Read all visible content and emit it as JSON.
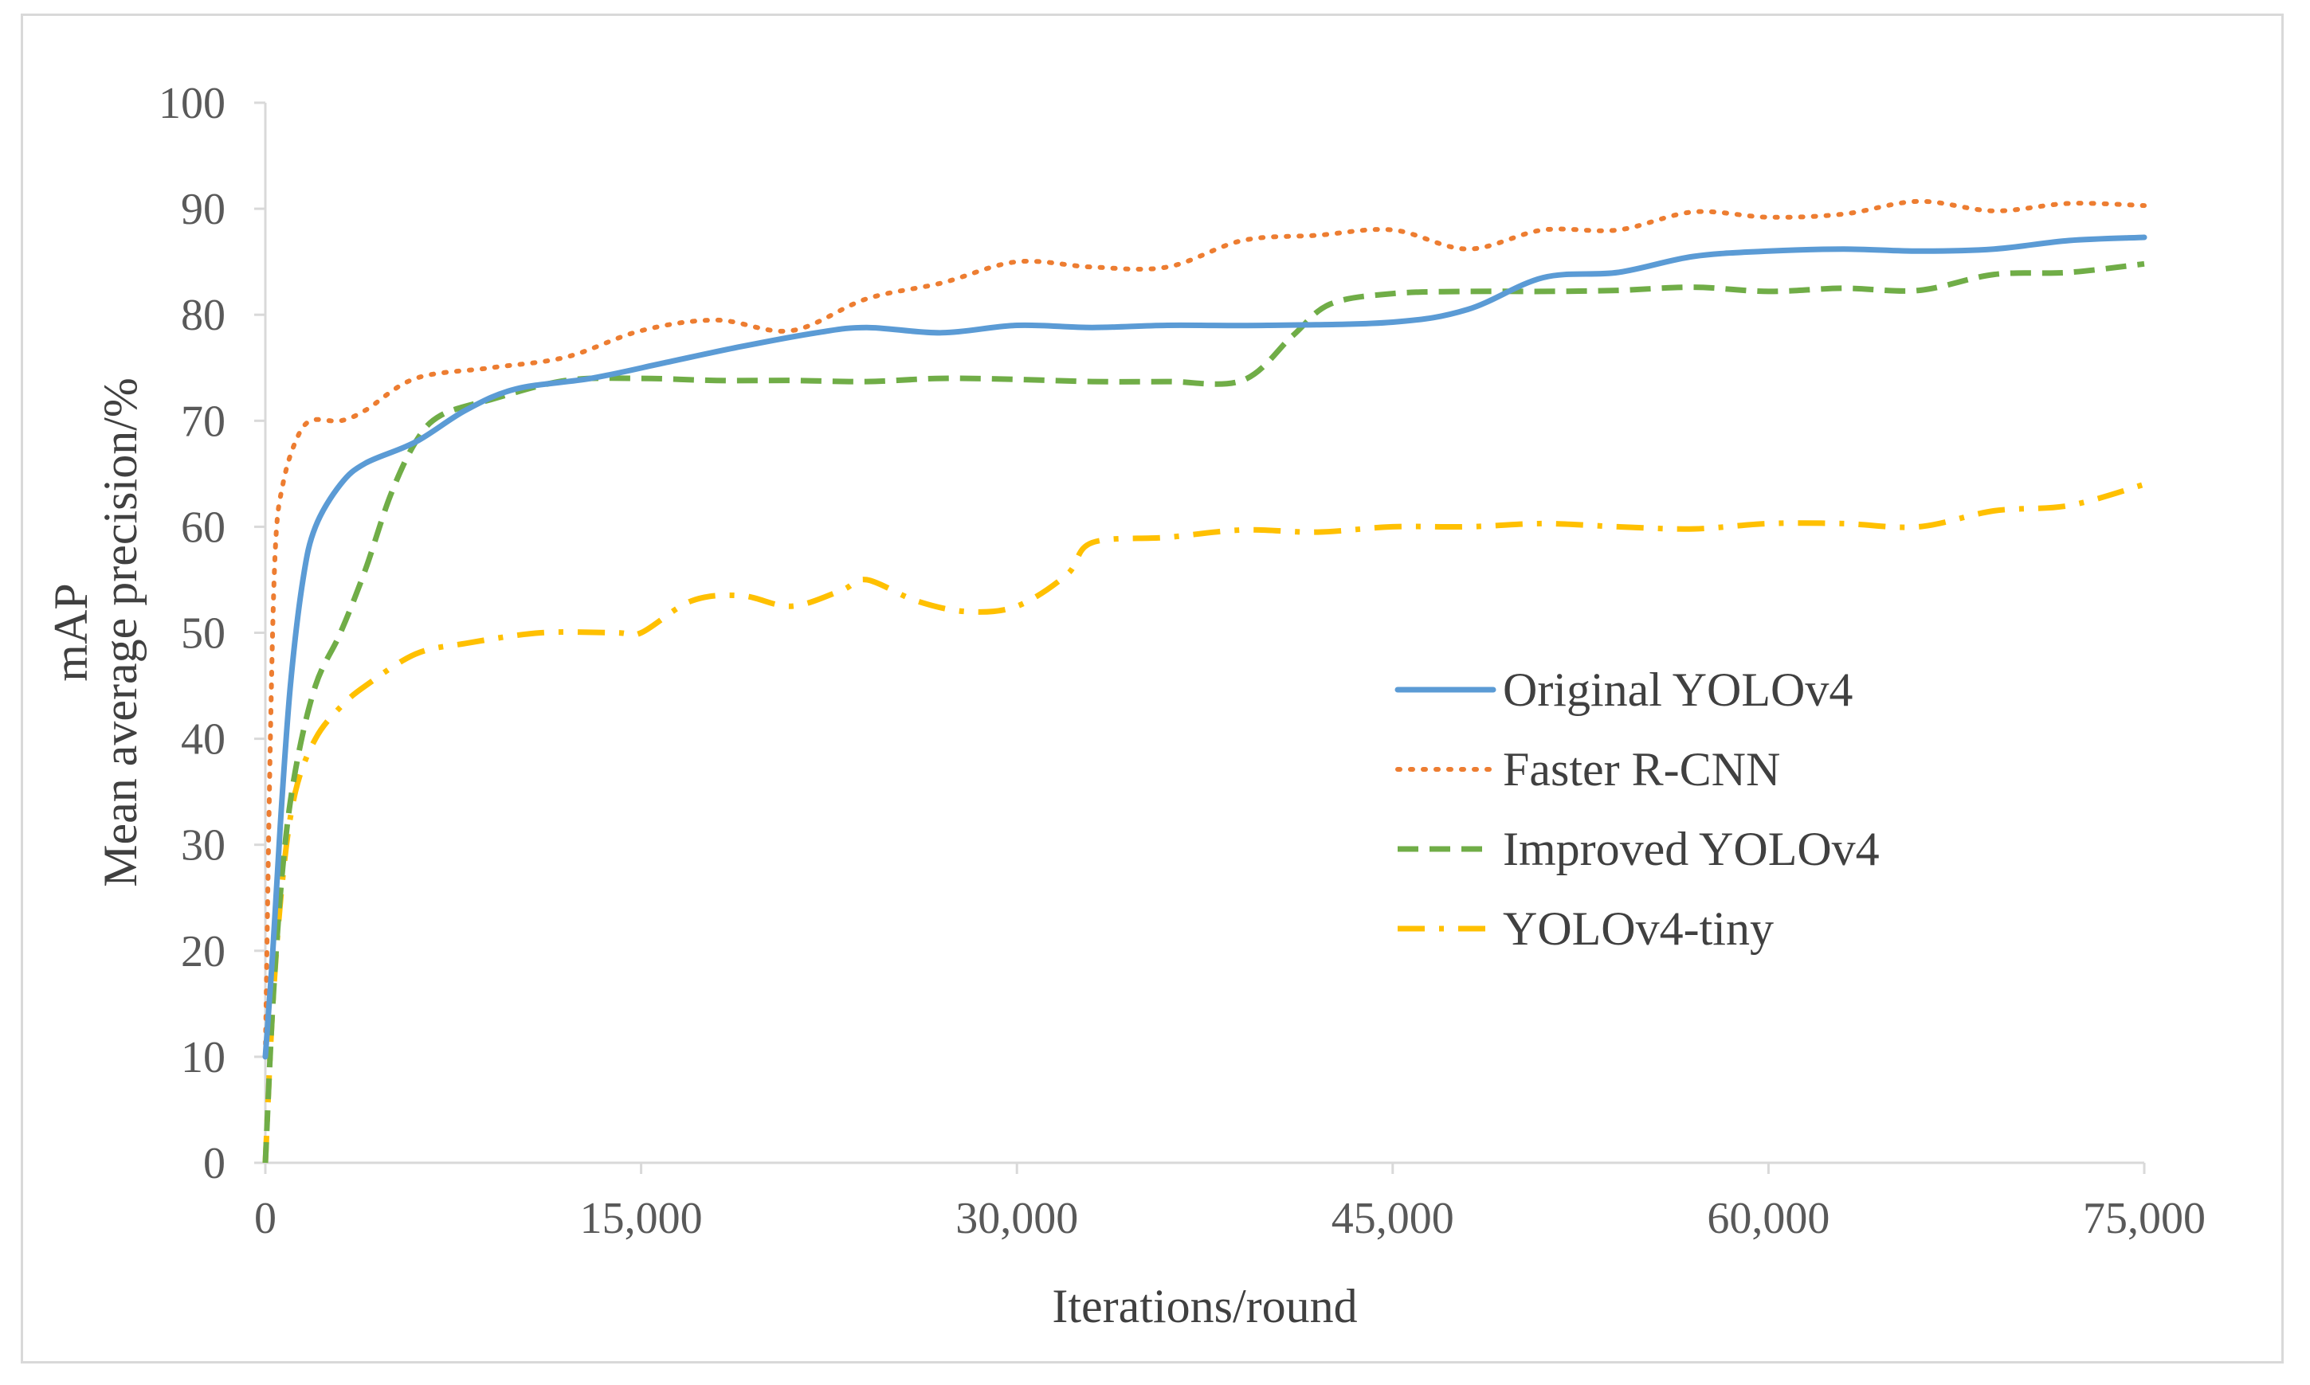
{
  "chart_data": {
    "type": "line",
    "title": "",
    "xlabel": "Iterations/round",
    "ylabel_line1": "mAP",
    "ylabel_line2": "Mean average precision/%",
    "xlim": [
      0,
      75000
    ],
    "ylim": [
      0,
      100
    ],
    "x_ticks": [
      0,
      15000,
      30000,
      45000,
      60000,
      75000
    ],
    "x_tick_labels": [
      "0",
      "15,000",
      "30,000",
      "45,000",
      "60,000",
      "75,000"
    ],
    "y_ticks": [
      0,
      10,
      20,
      30,
      40,
      50,
      60,
      70,
      80,
      90,
      100
    ],
    "y_tick_labels": [
      "0",
      "10",
      "20",
      "30",
      "40",
      "50",
      "60",
      "70",
      "80",
      "90",
      "100"
    ],
    "grid": false,
    "legend_position": "right-center",
    "series": [
      {
        "name": "Original YOLOv4",
        "color": "#5b9bd5",
        "style": "solid",
        "points": [
          [
            0,
            10
          ],
          [
            300,
            20
          ],
          [
            600,
            32
          ],
          [
            1000,
            45
          ],
          [
            1500,
            55
          ],
          [
            2000,
            60
          ],
          [
            3000,
            64
          ],
          [
            4000,
            66
          ],
          [
            6000,
            68
          ],
          [
            8000,
            71
          ],
          [
            10000,
            73
          ],
          [
            13000,
            74
          ],
          [
            16000,
            75.5
          ],
          [
            19000,
            77
          ],
          [
            22000,
            78.3
          ],
          [
            24000,
            78.8
          ],
          [
            27000,
            78.3
          ],
          [
            30000,
            79
          ],
          [
            33000,
            78.8
          ],
          [
            36000,
            79
          ],
          [
            40000,
            79
          ],
          [
            45000,
            79.3
          ],
          [
            48000,
            80.5
          ],
          [
            51000,
            83.5
          ],
          [
            54000,
            84
          ],
          [
            57000,
            85.5
          ],
          [
            60000,
            86
          ],
          [
            63000,
            86.2
          ],
          [
            66000,
            86
          ],
          [
            69000,
            86.2
          ],
          [
            72000,
            87
          ],
          [
            75000,
            87.3
          ]
        ]
      },
      {
        "name": "Faster R-CNN",
        "color": "#ed7d31",
        "style": "dotted",
        "points": [
          [
            0,
            10
          ],
          [
            200,
            40
          ],
          [
            400,
            58
          ],
          [
            700,
            64
          ],
          [
            1200,
            68
          ],
          [
            1800,
            70
          ],
          [
            3000,
            70
          ],
          [
            4000,
            71
          ],
          [
            6000,
            74
          ],
          [
            9000,
            75
          ],
          [
            12000,
            76
          ],
          [
            15000,
            78.5
          ],
          [
            18000,
            79.5
          ],
          [
            21000,
            78.5
          ],
          [
            24000,
            81.5
          ],
          [
            27000,
            83
          ],
          [
            30000,
            85
          ],
          [
            33000,
            84.5
          ],
          [
            36000,
            84.5
          ],
          [
            39000,
            87
          ],
          [
            42000,
            87.5
          ],
          [
            45000,
            88
          ],
          [
            48000,
            86.2
          ],
          [
            51000,
            88
          ],
          [
            54000,
            88
          ],
          [
            57000,
            89.7
          ],
          [
            60000,
            89.2
          ],
          [
            63000,
            89.5
          ],
          [
            66000,
            90.7
          ],
          [
            69000,
            89.8
          ],
          [
            72000,
            90.5
          ],
          [
            75000,
            90.3
          ]
        ]
      },
      {
        "name": "Improved YOLOv4",
        "color": "#70ad47",
        "style": "dashed",
        "points": [
          [
            0,
            0
          ],
          [
            300,
            15
          ],
          [
            700,
            28
          ],
          [
            1200,
            37
          ],
          [
            2000,
            45
          ],
          [
            3000,
            50
          ],
          [
            4000,
            56
          ],
          [
            5000,
            63
          ],
          [
            6000,
            68
          ],
          [
            7000,
            70.5
          ],
          [
            9000,
            72
          ],
          [
            12000,
            73.8
          ],
          [
            15000,
            74
          ],
          [
            18000,
            73.8
          ],
          [
            21000,
            73.8
          ],
          [
            24000,
            73.7
          ],
          [
            27000,
            74
          ],
          [
            30000,
            73.9
          ],
          [
            33000,
            73.7
          ],
          [
            36000,
            73.7
          ],
          [
            39000,
            73.8
          ],
          [
            41000,
            78
          ],
          [
            42500,
            81
          ],
          [
            45000,
            82
          ],
          [
            48000,
            82.2
          ],
          [
            51000,
            82.2
          ],
          [
            54000,
            82.3
          ],
          [
            57000,
            82.6
          ],
          [
            60000,
            82.2
          ],
          [
            63000,
            82.5
          ],
          [
            66000,
            82.3
          ],
          [
            69000,
            83.8
          ],
          [
            72000,
            84
          ],
          [
            75000,
            84.8
          ]
        ]
      },
      {
        "name": "YOLOv4-tiny",
        "color": "#ffc000",
        "style": "dashdot",
        "points": [
          [
            0,
            0
          ],
          [
            300,
            15
          ],
          [
            700,
            27
          ],
          [
            1200,
            35
          ],
          [
            2000,
            40
          ],
          [
            3000,
            43
          ],
          [
            4000,
            45
          ],
          [
            6000,
            48
          ],
          [
            8000,
            49
          ],
          [
            11000,
            50
          ],
          [
            14000,
            50
          ],
          [
            15000,
            50
          ],
          [
            17000,
            53
          ],
          [
            19000,
            53.5
          ],
          [
            21000,
            52.5
          ],
          [
            23000,
            54
          ],
          [
            24000,
            55
          ],
          [
            26000,
            53
          ],
          [
            28000,
            52
          ],
          [
            30000,
            52.5
          ],
          [
            32000,
            55.5
          ],
          [
            33000,
            58.5
          ],
          [
            36000,
            59
          ],
          [
            39000,
            59.7
          ],
          [
            42000,
            59.5
          ],
          [
            45000,
            60
          ],
          [
            48000,
            60
          ],
          [
            51000,
            60.3
          ],
          [
            54000,
            60
          ],
          [
            57000,
            59.8
          ],
          [
            60000,
            60.3
          ],
          [
            63000,
            60.3
          ],
          [
            66000,
            60
          ],
          [
            69000,
            61.5
          ],
          [
            72000,
            62
          ],
          [
            75000,
            64
          ]
        ]
      }
    ]
  }
}
